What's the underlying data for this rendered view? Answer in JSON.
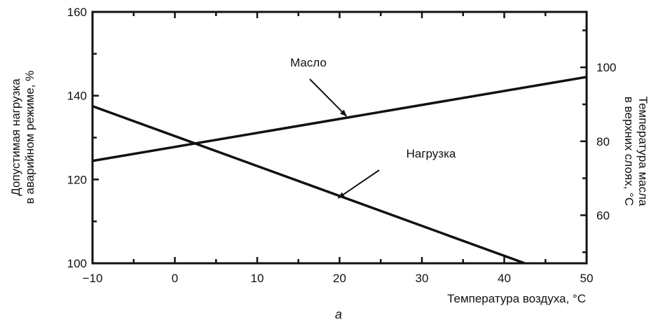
{
  "chart_data": {
    "type": "line",
    "x_axis": {
      "label": "Температура воздуха, °C",
      "range": [
        -10,
        50
      ],
      "ticks": [
        -10,
        0,
        10,
        20,
        30,
        40,
        50
      ],
      "tick_labels": [
        "−10",
        "0",
        "10",
        "20",
        "30",
        "40",
        "50"
      ]
    },
    "y_left_axis": {
      "label_line1": "Допустимая нагрузка",
      "label_line2": "в аварийном режиме, %",
      "range": [
        100,
        160
      ],
      "ticks": [
        100,
        120,
        140,
        160
      ],
      "tick_labels": [
        "100",
        "120",
        "140",
        "160"
      ]
    },
    "y_right_axis": {
      "label_line1": "Температура масла",
      "label_line2": "в верхних слоях, °C",
      "range": [
        47,
        115
      ],
      "ticks": [
        60,
        80,
        100
      ],
      "tick_labels": [
        "60",
        "80",
        "100"
      ]
    },
    "series": [
      {
        "name": "Масло",
        "axis": "right",
        "points": [
          [
            -10,
            74.7
          ],
          [
            50,
            97.4
          ]
        ]
      },
      {
        "name": "Нагрузка",
        "axis": "left",
        "points": [
          [
            -10,
            137.5
          ],
          [
            42.5,
            100
          ]
        ]
      }
    ],
    "annotations": [
      {
        "text": "Масло",
        "series": 0
      },
      {
        "text": "Нагрузка",
        "series": 1
      }
    ],
    "caption": "а",
    "grid": false,
    "colors": {
      "line": "#111111",
      "background": "#ffffff"
    }
  }
}
